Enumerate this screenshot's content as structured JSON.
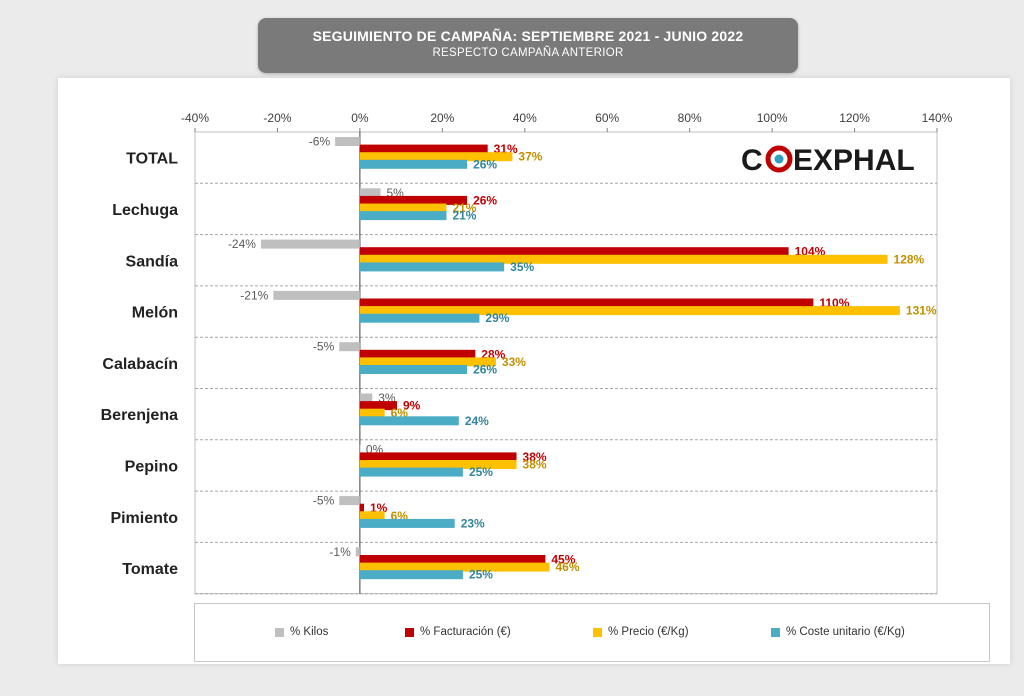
{
  "header": {
    "title": "SEGUIMIENTO DE CAMPAÑA: SEPTIEMBRE 2021 - JUNIO 2022",
    "subtitle": "RESPECTO CAMPAÑA ANTERIOR"
  },
  "logo": {
    "text": "COEXPHAL",
    "colors": {
      "dark": "#1a1a1a",
      "accent": "#c00000",
      "ring": "#2ea0c2"
    }
  },
  "chart_data": {
    "type": "bar",
    "orientation": "horizontal",
    "title": "SEGUIMIENTO DE CAMPAÑA: SEPTIEMBRE 2021 - JUNIO 2022",
    "subtitle": "RESPECTO CAMPAÑA ANTERIOR",
    "categories": [
      "TOTAL",
      "Lechuga",
      "Sandía",
      "Melón",
      "Calabacín",
      "Berenjena",
      "Pepino",
      "Pimiento",
      "Tomate"
    ],
    "xlim": [
      -40,
      140
    ],
    "x_ticks": [
      -40,
      -20,
      0,
      20,
      40,
      60,
      80,
      100,
      120,
      140
    ],
    "x_tick_labels": [
      "-40%",
      "-20%",
      "0%",
      "20%",
      "40%",
      "60%",
      "80%",
      "100%",
      "120%",
      "140%"
    ],
    "axis_position": "top",
    "grid": "dashed separators between categories",
    "legend_position": "bottom",
    "series": [
      {
        "name": "% Kilos",
        "color": "#bfbfbf",
        "label_color": "#595959",
        "values": [
          -6,
          5,
          -24,
          -21,
          -5,
          3,
          0,
          -5,
          -1
        ],
        "labels": [
          "-6%",
          "5%",
          "-24%",
          "-21%",
          "-5%",
          "3%",
          "0%",
          "-5%",
          "-1%"
        ]
      },
      {
        "name": "% Facturación (€)",
        "color": "#c00000",
        "label_color": "#c00000",
        "values": [
          31,
          26,
          104,
          110,
          28,
          9,
          38,
          1,
          45
        ],
        "labels": [
          "31%",
          "26%",
          "104%",
          "110%",
          "28%",
          "9%",
          "38%",
          "1%",
          "45%"
        ]
      },
      {
        "name": "% Precio (€/Kg)",
        "color": "#ffc000",
        "label_color": "#c09000",
        "values": [
          37,
          21,
          128,
          131,
          33,
          6,
          38,
          6,
          46
        ],
        "labels": [
          "37%",
          "21%",
          "128%",
          "131%",
          "33%",
          "6%",
          "38%",
          "6%",
          "46%"
        ]
      },
      {
        "name": "% Coste unitario (€/Kg)",
        "color": "#4bacc6",
        "label_color": "#31859b",
        "values": [
          26,
          21,
          35,
          29,
          26,
          24,
          25,
          23,
          25
        ],
        "labels": [
          "26%",
          "21%",
          "35%",
          "29%",
          "26%",
          "24%",
          "25%",
          "23%",
          "25%"
        ]
      }
    ]
  }
}
